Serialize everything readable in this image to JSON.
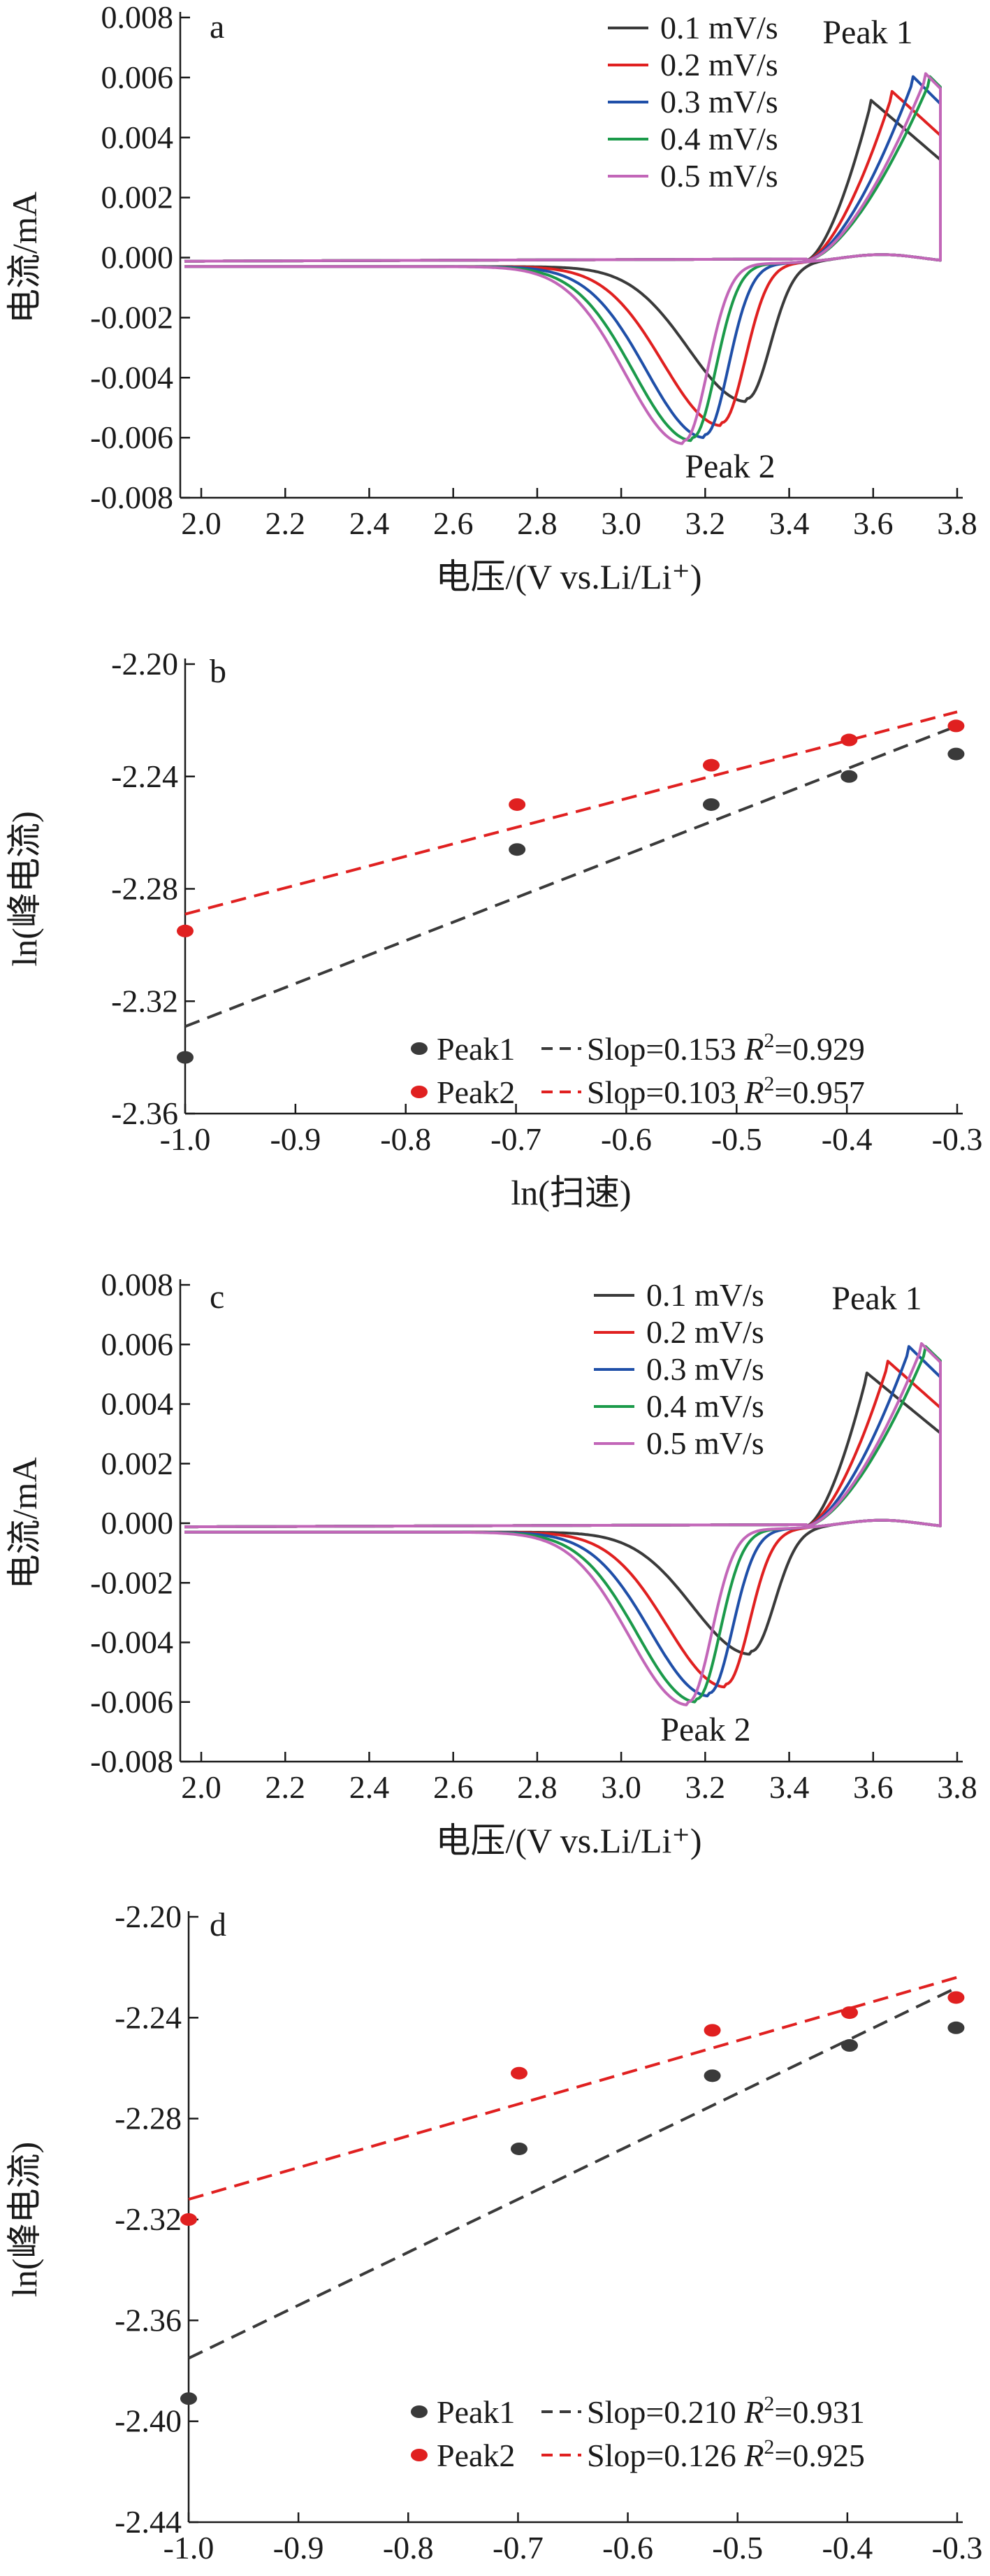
{
  "chart_data": [
    {
      "panel": "a",
      "type": "line",
      "xlabel": "电压/(V vs.Li/Li⁺)",
      "ylabel": "电流/mA",
      "xlim": [
        1.95,
        3.8
      ],
      "ylim": [
        -0.008,
        0.008
      ],
      "xticks": [
        2.0,
        2.2,
        2.4,
        2.6,
        2.8,
        3.0,
        3.2,
        3.4,
        3.6,
        3.8
      ],
      "xtick_labels": [
        "2.0",
        "2.2",
        "2.4",
        "2.6",
        "2.8",
        "3.0",
        "3.2",
        "3.4",
        "3.6",
        "3.8"
      ],
      "yticks": [
        0.008,
        0.006,
        0.004,
        0.002,
        0.0,
        -0.002,
        -0.004,
        -0.006,
        -0.008
      ],
      "ytick_labels": [
        "0.008",
        "0.006",
        "0.004",
        "0.002",
        "0.000",
        "-0.002",
        "-0.004",
        "-0.006",
        "-0.008"
      ],
      "legend_position": "top-right",
      "annotations": [
        "Peak 1",
        "Peak 2"
      ],
      "series": [
        {
          "name": "0.1 mV/s",
          "color": "#3a3a3a",
          "anodic_peak": [
            3.59,
            0.005
          ],
          "cathodic_peak": [
            3.3,
            -0.0045
          ]
        },
        {
          "name": "0.2 mV/s",
          "color": "#e02020",
          "anodic_peak": [
            3.64,
            0.0053
          ],
          "cathodic_peak": [
            3.24,
            -0.0053
          ]
        },
        {
          "name": "0.3 mV/s",
          "color": "#1f4fa8",
          "anodic_peak": [
            3.69,
            0.0058
          ],
          "cathodic_peak": [
            3.2,
            -0.0057
          ]
        },
        {
          "name": "0.4 mV/s",
          "color": "#1b9a4a",
          "anodic_peak": [
            3.73,
            0.0058
          ],
          "cathodic_peak": [
            3.17,
            -0.0058
          ]
        },
        {
          "name": "0.5 mV/s",
          "color": "#c266b8",
          "anodic_peak": [
            3.72,
            0.0059
          ],
          "cathodic_peak": [
            3.15,
            -0.0059
          ]
        }
      ]
    },
    {
      "panel": "b",
      "type": "scatter",
      "xlabel": "ln(扫速)",
      "ylabel": "ln(峰电流)",
      "xlim": [
        -1.0,
        -0.3
      ],
      "ylim": [
        -2.36,
        -2.2
      ],
      "xticks": [
        -1.0,
        -0.9,
        -0.8,
        -0.7,
        -0.6,
        -0.5,
        -0.4,
        -0.3
      ],
      "xtick_labels": [
        "-1.0",
        "-0.9",
        "-0.8",
        "-0.7",
        "-0.6",
        "-0.5",
        "-0.4",
        "-0.3"
      ],
      "yticks": [
        -2.2,
        -2.24,
        -2.28,
        -2.32,
        -2.36
      ],
      "ytick_labels": [
        "-2.20",
        "-2.24",
        "-2.28",
        "-2.32",
        "-2.36"
      ],
      "legend_position": "bottom-right",
      "series": [
        {
          "name": "Peak1",
          "color": "#3a3a3a",
          "legend_label": [
            "Peak1",
            "Slop=0.153 ",
            "R",
            "2",
            "=0.929"
          ],
          "x": [
            -1.0,
            -0.699,
            -0.523,
            -0.398,
            -0.301
          ],
          "y": [
            -2.34,
            -2.266,
            -2.25,
            -2.24,
            -2.232
          ],
          "fit": {
            "slope": 0.153,
            "r2": 0.929,
            "x": [
              -1.0,
              -0.3
            ],
            "y": [
              -2.329,
              -2.222
            ]
          }
        },
        {
          "name": "Peak2",
          "color": "#e02020",
          "legend_label": [
            "Peak2",
            "Slop=0.103 ",
            "R",
            "2",
            "=0.957"
          ],
          "x": [
            -1.0,
            -0.699,
            -0.523,
            -0.398,
            -0.301
          ],
          "y": [
            -2.295,
            -2.25,
            -2.236,
            -2.227,
            -2.222
          ],
          "fit": {
            "slope": 0.103,
            "r2": 0.957,
            "x": [
              -1.0,
              -0.3
            ],
            "y": [
              -2.289,
              -2.217
            ]
          }
        }
      ]
    },
    {
      "panel": "c",
      "type": "line",
      "xlabel": "电压/(V vs.Li/Li⁺)",
      "ylabel": "电流/mA",
      "xlim": [
        1.95,
        3.8
      ],
      "ylim": [
        -0.008,
        0.008
      ],
      "xticks": [
        2.0,
        2.2,
        2.4,
        2.6,
        2.8,
        3.0,
        3.2,
        3.4,
        3.6,
        3.8
      ],
      "xtick_labels": [
        "2.0",
        "2.2",
        "2.4",
        "2.6",
        "2.8",
        "3.0",
        "3.2",
        "3.4",
        "3.6",
        "3.8"
      ],
      "yticks": [
        0.008,
        0.006,
        0.004,
        0.002,
        0.0,
        -0.002,
        -0.004,
        -0.006,
        -0.008
      ],
      "ytick_labels": [
        "0.008",
        "0.006",
        "0.004",
        "0.002",
        "0.000",
        "-0.002",
        "-0.004",
        "-0.006",
        "-0.008"
      ],
      "legend_position": "top-right",
      "annotations": [
        "Peak 1",
        "Peak 2"
      ],
      "series": [
        {
          "name": "0.1 mV/s",
          "color": "#3a3a3a",
          "anodic_peak": [
            3.58,
            0.0048
          ],
          "cathodic_peak": [
            3.31,
            -0.0041
          ]
        },
        {
          "name": "0.2 mV/s",
          "color": "#e02020",
          "anodic_peak": [
            3.63,
            0.0052
          ],
          "cathodic_peak": [
            3.25,
            -0.0052
          ]
        },
        {
          "name": "0.3 mV/s",
          "color": "#1f4fa8",
          "anodic_peak": [
            3.68,
            0.0057
          ],
          "cathodic_peak": [
            3.21,
            -0.0055
          ]
        },
        {
          "name": "0.4 mV/s",
          "color": "#1b9a4a",
          "anodic_peak": [
            3.72,
            0.0057
          ],
          "cathodic_peak": [
            3.18,
            -0.0057
          ]
        },
        {
          "name": "0.5 mV/s",
          "color": "#c266b8",
          "anodic_peak": [
            3.71,
            0.0058
          ],
          "cathodic_peak": [
            3.16,
            -0.0058
          ]
        }
      ]
    },
    {
      "panel": "d",
      "type": "scatter",
      "xlabel": "ln(扫速)",
      "ylabel": "ln(峰电流)",
      "xlim": [
        -1.0,
        -0.3
      ],
      "ylim": [
        -2.44,
        -2.2
      ],
      "xticks": [
        -1.0,
        -0.9,
        -0.8,
        -0.7,
        -0.6,
        -0.5,
        -0.4,
        -0.3
      ],
      "xtick_labels": [
        "-1.0",
        "-0.9",
        "-0.8",
        "-0.7",
        "-0.6",
        "-0.5",
        "-0.4",
        "-0.3"
      ],
      "yticks": [
        -2.2,
        -2.24,
        -2.28,
        -2.32,
        -2.36,
        -2.4,
        -2.44
      ],
      "ytick_labels": [
        "-2.20",
        "-2.24",
        "-2.28",
        "-2.32",
        "-2.36",
        "-2.40",
        "-2.44"
      ],
      "legend_position": "bottom-right",
      "series": [
        {
          "name": "Peak1",
          "color": "#3a3a3a",
          "legend_label": [
            "Peak1",
            "Slop=0.210 ",
            "R",
            "2",
            "=0.931"
          ],
          "x": [
            -1.0,
            -0.699,
            -0.523,
            -0.398,
            -0.301
          ],
          "y": [
            -2.391,
            -2.292,
            -2.263,
            -2.251,
            -2.244
          ],
          "fit": {
            "slope": 0.21,
            "r2": 0.931,
            "x": [
              -1.0,
              -0.3
            ],
            "y": [
              -2.375,
              -2.228
            ]
          }
        },
        {
          "name": "Peak2",
          "color": "#e02020",
          "legend_label": [
            "Peak2",
            "Slop=0.126 ",
            "R",
            "2",
            "=0.925"
          ],
          "x": [
            -1.0,
            -0.699,
            -0.523,
            -0.398,
            -0.301
          ],
          "y": [
            -2.32,
            -2.262,
            -2.245,
            -2.238,
            -2.232
          ],
          "fit": {
            "slope": 0.126,
            "r2": 0.925,
            "x": [
              -1.0,
              -0.3
            ],
            "y": [
              -2.312,
              -2.224
            ]
          }
        }
      ]
    }
  ]
}
